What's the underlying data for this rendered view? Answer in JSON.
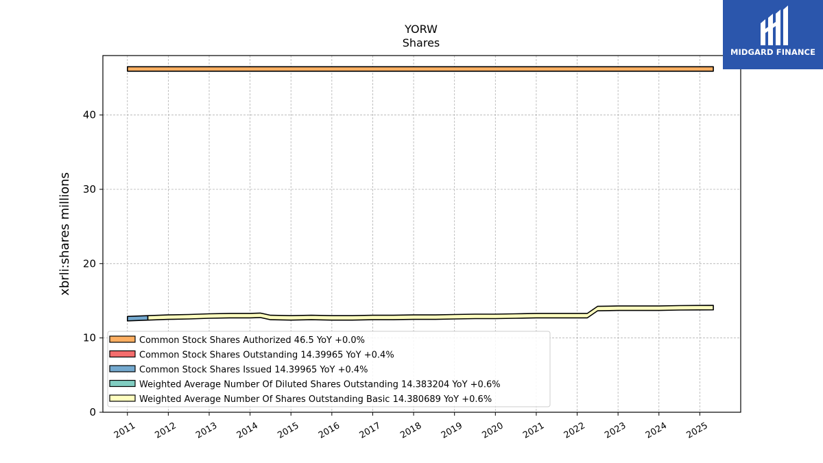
{
  "chart_data": {
    "type": "area",
    "title": "YORW",
    "subtitle": "Shares",
    "ylabel": "xbrli:shares millions",
    "xlabel": "",
    "xlim": [
      2010.4,
      2026.0
    ],
    "ylim": [
      0,
      48
    ],
    "x_ticks": [
      "2011",
      "2012",
      "2013",
      "2014",
      "2015",
      "2016",
      "2017",
      "2018",
      "2019",
      "2020",
      "2021",
      "2022",
      "2023",
      "2024",
      "2025"
    ],
    "y_ticks": [
      0,
      10,
      20,
      30,
      40
    ],
    "grid": true,
    "legend_position": "lower-left",
    "series": [
      {
        "name": "Common Stock Shares Authorized  46.5 YoY +0.0%",
        "color": "#fdae61",
        "x": [
          2011.0,
          2025.33
        ],
        "y": [
          46.5,
          46.5
        ]
      },
      {
        "name": "Common Stock Shares Outstanding  14.39965 YoY +0.4%",
        "color": "#f46d6d",
        "x": [],
        "y": []
      },
      {
        "name": "Common Stock Shares Issued  14.39965 YoY +0.4%",
        "color": "#74a9cf",
        "x": [
          2011.0,
          2011.5
        ],
        "y": [
          12.9,
          13.0
        ]
      },
      {
        "name": "Weighted Average Number Of Diluted Shares Outstanding  14.383204 YoY +0.6%",
        "color": "#80cdc1",
        "x": [],
        "y": []
      },
      {
        "name": "Weighted Average Number Of Shares Outstanding Basic  14.380689 YoY +0.6%",
        "color": "#ffffbf",
        "x": [
          2011.5,
          2012.0,
          2012.5,
          2013.0,
          2013.5,
          2014.0,
          2014.25,
          2014.5,
          2015.0,
          2015.5,
          2016.0,
          2016.5,
          2017.0,
          2017.5,
          2018.0,
          2018.5,
          2019.0,
          2019.5,
          2020.0,
          2020.5,
          2021.0,
          2021.5,
          2022.0,
          2022.25,
          2022.5,
          2023.0,
          2023.5,
          2024.0,
          2024.5,
          2025.33
        ],
        "y": [
          13.0,
          13.1,
          13.15,
          13.25,
          13.3,
          13.3,
          13.35,
          13.05,
          13.0,
          13.05,
          13.0,
          13.0,
          13.05,
          13.05,
          13.1,
          13.1,
          13.15,
          13.2,
          13.2,
          13.25,
          13.3,
          13.3,
          13.3,
          13.3,
          14.25,
          14.3,
          14.3,
          14.3,
          14.35,
          14.38
        ]
      }
    ]
  },
  "logo": {
    "text": "MIDGARD FINANCE",
    "color": "#2b56ac"
  }
}
